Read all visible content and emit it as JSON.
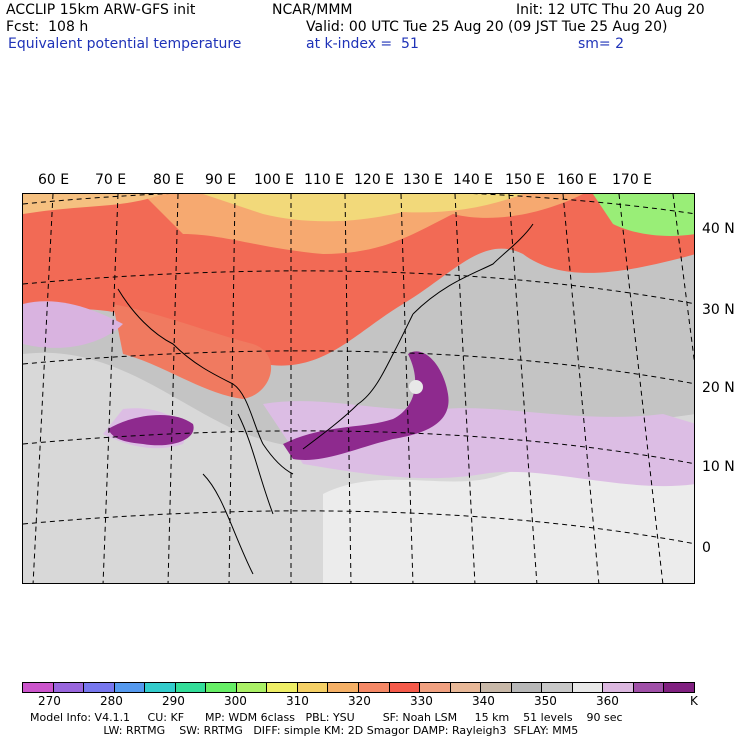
{
  "header": {
    "model": "ACCLIP 15km ARW-GFS init",
    "org": "NCAR/MMM",
    "init": "Init: 12 UTC Thu 20 Aug 20",
    "fcst": "Fcst:  108 h",
    "valid": "Valid: 00 UTC Tue 25 Aug 20 (09 JST Tue 25 Aug 20)",
    "field": "Equivalent potential temperature",
    "level": "at k-index =  51",
    "smooth": "sm= 2"
  },
  "map": {
    "lon_labels": [
      "60 E",
      "70 E",
      "80 E",
      "90 E",
      "100 E",
      "110 E",
      "120 E",
      "130 E",
      "140 E",
      "150 E",
      "160 E",
      "170 E"
    ],
    "lat_labels": [
      "40 N",
      "30 N",
      "20 N",
      "10 N",
      "0"
    ]
  },
  "colorbar": {
    "colors": [
      "#cc55cc",
      "#9966dd",
      "#7777ee",
      "#5599ee",
      "#33cccc",
      "#33dd99",
      "#66ee66",
      "#aaf066",
      "#eeee66",
      "#f5d066",
      "#f5b066",
      "#f58866",
      "#f55a4a",
      "#f0a080",
      "#e8b898",
      "#c8b8a8",
      "#b8b8b8",
      "#c8c8c8",
      "#e8e8e8",
      "#dcb8e0",
      "#a050a8",
      "#802080"
    ],
    "ticks": [
      "270",
      "280",
      "290",
      "300",
      "310",
      "320",
      "330",
      "340",
      "350",
      "360"
    ],
    "unit": "K"
  },
  "model_info": {
    "line1": "Model Info: V4.1.1     CU: KF      MP: WDM 6class   PBL: YSU        SF: Noah LSM     15 km    51 levels    90 sec",
    "line2": "                     LW: RRTMG    SW: RRTMG   DIFF: simple KM: 2D Smagor DAMP: Rayleigh3  SFLAY: MM5"
  }
}
